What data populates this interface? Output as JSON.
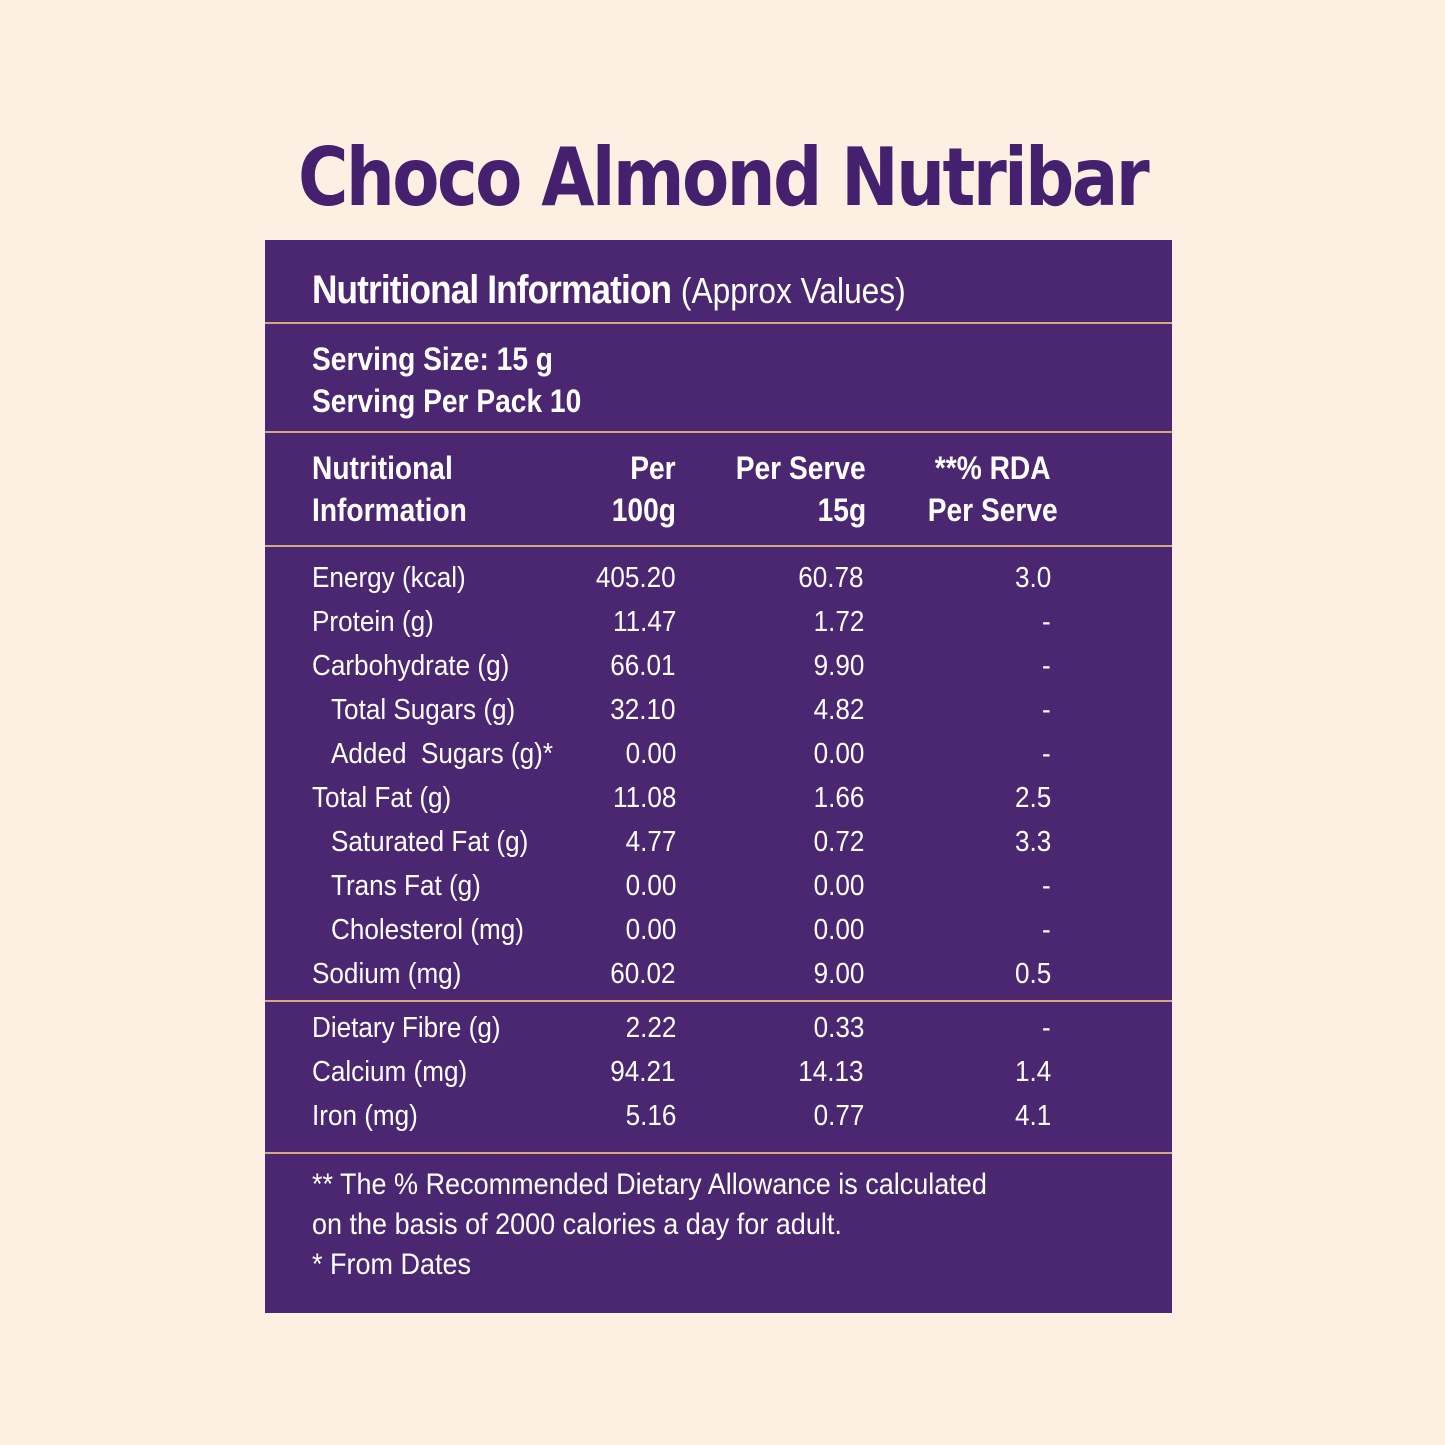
{
  "title": "Choco Almond Nutribar",
  "panel": {
    "heading_strong": "Nutritional Information",
    "heading_light": "(Approx Values)",
    "serving_size": "Serving Size: 15 g",
    "serving_per_pack": "Serving Per Pack 10",
    "columns": {
      "c0_l1": "Nutritional",
      "c0_l2": "Information",
      "c1_l1": "Per",
      "c1_l2": "100g",
      "c2_l1": "Per Serve",
      "c2_l2": "15g",
      "c3_l1": "**% RDA",
      "c3_l2": "Per Serve"
    },
    "rows": [
      {
        "name": "Energy (kcal)",
        "per100": "405.20",
        "serve": "60.78",
        "rda": "3.0"
      },
      {
        "name": "Protein (g)",
        "per100": "11.47",
        "serve": "1.72",
        "rda": "-"
      },
      {
        "name": "Carbohydrate (g)",
        "per100": "66.01",
        "serve": "9.90",
        "rda": "-"
      },
      {
        "name": "Total Sugars (g)",
        "per100": "32.10",
        "serve": "4.82",
        "rda": "-"
      },
      {
        "name": "Added  Sugars (g)*",
        "per100": "0.00",
        "serve": "0.00",
        "rda": "-"
      },
      {
        "name": "Total Fat (g)",
        "per100": "11.08",
        "serve": "1.66",
        "rda": "2.5"
      },
      {
        "name": "Saturated Fat (g)",
        "per100": "4.77",
        "serve": "0.72",
        "rda": "3.3"
      },
      {
        "name": "Trans Fat (g)",
        "per100": "0.00",
        "serve": "0.00",
        "rda": "-"
      },
      {
        "name": "Cholesterol (mg)",
        "per100": "0.00",
        "serve": "0.00",
        "rda": "-"
      },
      {
        "name": "Sodium (mg)",
        "per100": "60.02",
        "serve": "9.00",
        "rda": "0.5"
      }
    ],
    "rows2": [
      {
        "name": "Dietary Fibre (g)",
        "per100": "2.22",
        "serve": "0.33",
        "rda": "-"
      },
      {
        "name": "Calcium (mg)",
        "per100": "94.21",
        "serve": "14.13",
        "rda": "1.4"
      },
      {
        "name": "Iron (mg)",
        "per100": "5.16",
        "serve": "0.77",
        "rda": "4.1"
      }
    ],
    "footnotes": {
      "line1": "** The % Recommended Dietary Allowance is calculated",
      "line2": "on the basis of 2000 calories a day for adult.",
      "line3": "* From Dates"
    }
  },
  "colors": {
    "background": "#fdefe2",
    "panel": "#4b2671",
    "title": "#45206f",
    "divider": "#d9a77f"
  }
}
